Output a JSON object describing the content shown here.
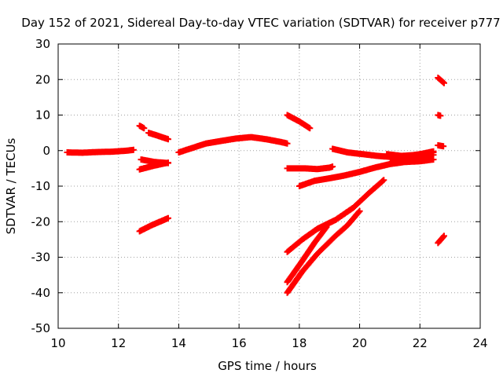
{
  "chart_data": {
    "type": "scatter",
    "title": "Day 152 of 2021, Sidereal Day-to-day VTEC variation (SDTVAR) for receiver p777",
    "xlabel": "GPS time / hours",
    "ylabel": "SDTVAR / TECUs",
    "xlim": [
      10,
      24
    ],
    "ylim": [
      -50,
      30
    ],
    "xticks": [
      "10",
      "12",
      "14",
      "16",
      "18",
      "20",
      "22",
      "24"
    ],
    "yticks": [
      "-50",
      "-40",
      "-30",
      "-20",
      "-10",
      "0",
      "10",
      "20",
      "30"
    ],
    "grid": true,
    "series": [
      {
        "name": "SDTVAR",
        "color": "#ff0000",
        "marker": "plus",
        "segments": [
          [
            [
              10.3,
              -0.5
            ],
            [
              10.8,
              -0.6
            ],
            [
              11.3,
              -0.4
            ],
            [
              11.8,
              -0.3
            ],
            [
              12.3,
              0.0
            ],
            [
              12.5,
              0.2
            ]
          ],
          [
            [
              12.7,
              7.0
            ],
            [
              12.85,
              6.3
            ]
          ],
          [
            [
              13.0,
              5.0
            ],
            [
              13.3,
              4.2
            ],
            [
              13.65,
              3.2
            ]
          ],
          [
            [
              12.75,
              -2.5
            ],
            [
              13.2,
              -3.2
            ],
            [
              13.65,
              -3.5
            ]
          ],
          [
            [
              12.7,
              -5.3
            ],
            [
              13.2,
              -4.2
            ],
            [
              13.65,
              -3.4
            ]
          ],
          [
            [
              12.7,
              -22.7
            ],
            [
              13.1,
              -21.0
            ],
            [
              13.65,
              -19.0
            ]
          ],
          [
            [
              14.0,
              -0.5
            ],
            [
              14.4,
              0.6
            ],
            [
              14.9,
              2.0
            ],
            [
              15.4,
              2.7
            ],
            [
              15.9,
              3.4
            ],
            [
              16.4,
              3.8
            ],
            [
              16.9,
              3.2
            ],
            [
              17.4,
              2.4
            ],
            [
              17.6,
              2.0
            ]
          ],
          [
            [
              17.6,
              10.0
            ],
            [
              18.0,
              8.2
            ],
            [
              18.35,
              6.3
            ]
          ],
          [
            [
              17.6,
              -5.0
            ],
            [
              18.2,
              -5.0
            ],
            [
              18.6,
              -5.2
            ],
            [
              19.0,
              -4.8
            ],
            [
              19.1,
              -4.5
            ]
          ],
          [
            [
              17.6,
              -28.5
            ],
            [
              18.1,
              -25.0
            ],
            [
              18.6,
              -22.0
            ],
            [
              19.2,
              -19.5
            ],
            [
              19.8,
              -16.0
            ],
            [
              20.3,
              -12.0
            ],
            [
              20.8,
              -8.3
            ]
          ],
          [
            [
              17.6,
              -40.0
            ],
            [
              18.1,
              -34.0
            ],
            [
              18.6,
              -29.0
            ],
            [
              19.2,
              -24.0
            ],
            [
              19.6,
              -21.0
            ],
            [
              20.0,
              -17.0
            ]
          ],
          [
            [
              17.6,
              -37.0
            ],
            [
              18.1,
              -31.0
            ],
            [
              18.5,
              -26.0
            ],
            [
              18.9,
              -21.5
            ]
          ],
          [
            [
              18.0,
              -10.0
            ],
            [
              18.5,
              -8.5
            ],
            [
              19.0,
              -7.8
            ],
            [
              19.5,
              -7.0
            ],
            [
              20.0,
              -6.0
            ],
            [
              20.5,
              -4.8
            ],
            [
              21.0,
              -3.8
            ],
            [
              21.5,
              -3.2
            ],
            [
              22.0,
              -3.0
            ],
            [
              22.45,
              -2.5
            ]
          ],
          [
            [
              19.1,
              0.5
            ],
            [
              19.6,
              -0.5
            ],
            [
              20.1,
              -1.0
            ],
            [
              20.6,
              -1.5
            ],
            [
              21.1,
              -1.8
            ],
            [
              21.6,
              -1.5
            ],
            [
              22.0,
              -1.0
            ],
            [
              22.45,
              -0.5
            ]
          ],
          [
            [
              20.9,
              -1.0
            ],
            [
              21.4,
              -1.5
            ],
            [
              21.9,
              -1.2
            ],
            [
              22.45,
              -0.2
            ]
          ],
          [
            [
              21.1,
              -2.8
            ],
            [
              21.6,
              -2.2
            ],
            [
              22.1,
              -1.5
            ],
            [
              22.45,
              -1.2
            ]
          ],
          [
            [
              22.6,
              20.5
            ],
            [
              22.8,
              19.0
            ]
          ],
          [
            [
              22.6,
              10.0
            ],
            [
              22.68,
              9.8
            ]
          ],
          [
            [
              22.6,
              1.5
            ],
            [
              22.78,
              1.2
            ]
          ],
          [
            [
              22.6,
              -26.0
            ],
            [
              22.8,
              -24.0
            ]
          ]
        ]
      }
    ]
  }
}
